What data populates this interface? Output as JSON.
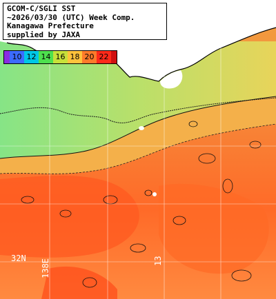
{
  "map": {
    "title_lines": [
      "GCOM-C/SGLI SST",
      "~2026/03/30 (UTC) Week Comp.",
      "Kanagawa Prefecture",
      "supplied by JAXA"
    ],
    "scale": {
      "labels": [
        "10",
        "12",
        "14",
        "16",
        "18",
        "20",
        "22"
      ],
      "colors": [
        "#8a2be2",
        "#3c6bff",
        "#00c7e6",
        "#4ee04e",
        "#c8e03a",
        "#ffc23c",
        "#ff7a2a",
        "#ff2a1a"
      ]
    },
    "grid_labels": {
      "latitude": "32N",
      "longitude_1": "138E",
      "longitude_2": "13"
    },
    "colors": {
      "land": "#ffffff",
      "coast_green": "#7ee07a",
      "mid_yellow": "#d8d868",
      "warm_orange": "#ff8a3a",
      "hot_red": "#ff4a1a"
    }
  }
}
